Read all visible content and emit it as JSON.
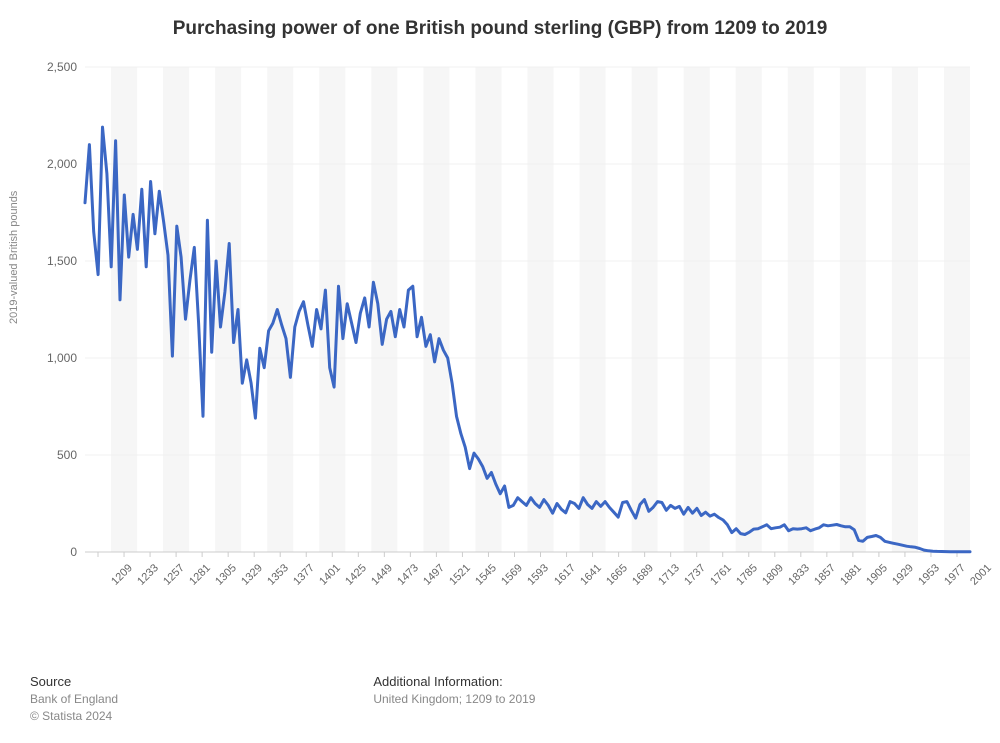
{
  "chart": {
    "type": "line",
    "title": "Purchasing power of one British pound sterling (GBP) from 1209 to 2019",
    "title_fontsize": 19,
    "title_color": "#333333",
    "background_color": "#ffffff",
    "plot_background": "#ffffff",
    "x_gridband_color": "#f6f6f6",
    "y_gridline_color": "#f0f0f0",
    "axis_line_color": "#cccccc",
    "ylabel": "2019-valued British pounds",
    "ylabel_fontsize": 11,
    "tick_label_color": "#666666",
    "tick_fontsize": 12,
    "line_color": "#3b67c4",
    "line_width": 3,
    "ylim": [
      0,
      2500
    ],
    "ytick_step": 500,
    "xlim": [
      1209,
      2019
    ],
    "xtick_labels": [
      "1209",
      "1233",
      "1257",
      "1281",
      "1305",
      "1329",
      "1353",
      "1377",
      "1401",
      "1425",
      "1449",
      "1473",
      "1497",
      "1521",
      "1545",
      "1569",
      "1593",
      "1617",
      "1641",
      "1665",
      "1689",
      "1713",
      "1737",
      "1761",
      "1785",
      "1809",
      "1833",
      "1857",
      "1881",
      "1905",
      "1929",
      "1953",
      "1977",
      "2001"
    ],
    "series": {
      "name": "Purchasing power",
      "points": [
        [
          1209,
          1800
        ],
        [
          1213,
          2100
        ],
        [
          1217,
          1650
        ],
        [
          1221,
          1430
        ],
        [
          1225,
          2190
        ],
        [
          1229,
          1950
        ],
        [
          1233,
          1470
        ],
        [
          1237,
          2120
        ],
        [
          1241,
          1300
        ],
        [
          1245,
          1840
        ],
        [
          1249,
          1520
        ],
        [
          1253,
          1740
        ],
        [
          1257,
          1560
        ],
        [
          1261,
          1870
        ],
        [
          1265,
          1470
        ],
        [
          1269,
          1910
        ],
        [
          1273,
          1640
        ],
        [
          1277,
          1860
        ],
        [
          1281,
          1700
        ],
        [
          1285,
          1530
        ],
        [
          1289,
          1010
        ],
        [
          1293,
          1680
        ],
        [
          1297,
          1520
        ],
        [
          1301,
          1200
        ],
        [
          1305,
          1400
        ],
        [
          1309,
          1570
        ],
        [
          1313,
          1180
        ],
        [
          1317,
          700
        ],
        [
          1321,
          1710
        ],
        [
          1325,
          1030
        ],
        [
          1329,
          1500
        ],
        [
          1333,
          1160
        ],
        [
          1337,
          1340
        ],
        [
          1341,
          1590
        ],
        [
          1345,
          1080
        ],
        [
          1349,
          1250
        ],
        [
          1353,
          870
        ],
        [
          1357,
          990
        ],
        [
          1361,
          870
        ],
        [
          1365,
          690
        ],
        [
          1369,
          1050
        ],
        [
          1373,
          950
        ],
        [
          1377,
          1140
        ],
        [
          1381,
          1180
        ],
        [
          1385,
          1250
        ],
        [
          1389,
          1170
        ],
        [
          1393,
          1100
        ],
        [
          1397,
          900
        ],
        [
          1401,
          1160
        ],
        [
          1405,
          1240
        ],
        [
          1409,
          1290
        ],
        [
          1413,
          1170
        ],
        [
          1417,
          1060
        ],
        [
          1421,
          1250
        ],
        [
          1425,
          1150
        ],
        [
          1429,
          1350
        ],
        [
          1433,
          950
        ],
        [
          1437,
          850
        ],
        [
          1441,
          1370
        ],
        [
          1445,
          1100
        ],
        [
          1449,
          1280
        ],
        [
          1453,
          1180
        ],
        [
          1457,
          1080
        ],
        [
          1461,
          1230
        ],
        [
          1465,
          1310
        ],
        [
          1469,
          1160
        ],
        [
          1473,
          1390
        ],
        [
          1477,
          1280
        ],
        [
          1481,
          1070
        ],
        [
          1485,
          1200
        ],
        [
          1489,
          1240
        ],
        [
          1493,
          1110
        ],
        [
          1497,
          1250
        ],
        [
          1501,
          1160
        ],
        [
          1505,
          1350
        ],
        [
          1509,
          1370
        ],
        [
          1513,
          1110
        ],
        [
          1517,
          1210
        ],
        [
          1521,
          1060
        ],
        [
          1525,
          1120
        ],
        [
          1529,
          980
        ],
        [
          1533,
          1100
        ],
        [
          1537,
          1040
        ],
        [
          1541,
          1000
        ],
        [
          1545,
          870
        ],
        [
          1549,
          700
        ],
        [
          1553,
          610
        ],
        [
          1557,
          540
        ],
        [
          1561,
          430
        ],
        [
          1565,
          510
        ],
        [
          1569,
          480
        ],
        [
          1573,
          440
        ],
        [
          1577,
          380
        ],
        [
          1581,
          410
        ],
        [
          1585,
          350
        ],
        [
          1589,
          300
        ],
        [
          1593,
          340
        ],
        [
          1597,
          230
        ],
        [
          1601,
          240
        ],
        [
          1605,
          280
        ],
        [
          1609,
          260
        ],
        [
          1613,
          240
        ],
        [
          1617,
          280
        ],
        [
          1621,
          250
        ],
        [
          1625,
          230
        ],
        [
          1629,
          270
        ],
        [
          1633,
          240
        ],
        [
          1637,
          200
        ],
        [
          1641,
          250
        ],
        [
          1645,
          220
        ],
        [
          1649,
          202
        ],
        [
          1653,
          260
        ],
        [
          1657,
          250
        ],
        [
          1661,
          225
        ],
        [
          1665,
          280
        ],
        [
          1669,
          245
        ],
        [
          1673,
          225
        ],
        [
          1677,
          260
        ],
        [
          1681,
          235
        ],
        [
          1685,
          260
        ],
        [
          1689,
          230
        ],
        [
          1693,
          205
        ],
        [
          1697,
          180
        ],
        [
          1701,
          255
        ],
        [
          1705,
          260
        ],
        [
          1709,
          215
        ],
        [
          1713,
          175
        ],
        [
          1717,
          245
        ],
        [
          1721,
          270
        ],
        [
          1725,
          210
        ],
        [
          1729,
          230
        ],
        [
          1733,
          260
        ],
        [
          1737,
          255
        ],
        [
          1741,
          215
        ],
        [
          1745,
          240
        ],
        [
          1749,
          225
        ],
        [
          1753,
          235
        ],
        [
          1757,
          195
        ],
        [
          1761,
          230
        ],
        [
          1765,
          200
        ],
        [
          1769,
          225
        ],
        [
          1773,
          188
        ],
        [
          1777,
          205
        ],
        [
          1781,
          185
        ],
        [
          1785,
          195
        ],
        [
          1789,
          178
        ],
        [
          1793,
          165
        ],
        [
          1797,
          140
        ],
        [
          1801,
          100
        ],
        [
          1805,
          120
        ],
        [
          1809,
          95
        ],
        [
          1813,
          90
        ],
        [
          1817,
          102
        ],
        [
          1821,
          118
        ],
        [
          1825,
          120
        ],
        [
          1829,
          130
        ],
        [
          1833,
          140
        ],
        [
          1837,
          120
        ],
        [
          1841,
          125
        ],
        [
          1845,
          128
        ],
        [
          1849,
          140
        ],
        [
          1853,
          110
        ],
        [
          1857,
          120
        ],
        [
          1861,
          118
        ],
        [
          1865,
          120
        ],
        [
          1869,
          125
        ],
        [
          1873,
          110
        ],
        [
          1877,
          118
        ],
        [
          1881,
          125
        ],
        [
          1885,
          140
        ],
        [
          1889,
          135
        ],
        [
          1893,
          138
        ],
        [
          1897,
          142
        ],
        [
          1901,
          135
        ],
        [
          1905,
          130
        ],
        [
          1909,
          130
        ],
        [
          1913,
          115
        ],
        [
          1917,
          60
        ],
        [
          1921,
          55
        ],
        [
          1925,
          75
        ],
        [
          1929,
          80
        ],
        [
          1933,
          85
        ],
        [
          1937,
          75
        ],
        [
          1941,
          55
        ],
        [
          1945,
          50
        ],
        [
          1949,
          45
        ],
        [
          1953,
          40
        ],
        [
          1957,
          35
        ],
        [
          1961,
          30
        ],
        [
          1965,
          27
        ],
        [
          1969,
          24
        ],
        [
          1973,
          18
        ],
        [
          1977,
          10
        ],
        [
          1981,
          6
        ],
        [
          1985,
          4
        ],
        [
          1989,
          3
        ],
        [
          1993,
          2.5
        ],
        [
          1997,
          2
        ],
        [
          2001,
          1.8
        ],
        [
          2005,
          1.5
        ],
        [
          2009,
          1.2
        ],
        [
          2013,
          1.1
        ],
        [
          2017,
          1.0
        ],
        [
          2019,
          1.0
        ]
      ]
    }
  },
  "footer": {
    "source_heading": "Source",
    "source_text": "Bank of England",
    "copyright": "© Statista 2024",
    "info_heading": "Additional Information:",
    "info_text": "United Kingdom; 1209 to 2019"
  }
}
